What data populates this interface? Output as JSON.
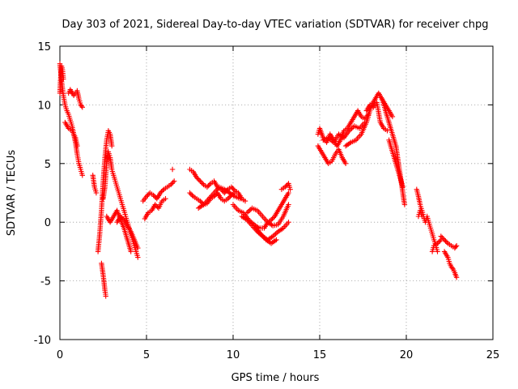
{
  "chart_data": {
    "type": "scatter",
    "title": "Day 303 of 2021, Sidereal Day-to-day VTEC variation (SDTVAR) for receiver chpg",
    "xlabel": "GPS time / hours",
    "ylabel": "SDTVAR / TECUs",
    "xlim": [
      0,
      25
    ],
    "ylim": [
      -10,
      15
    ],
    "xticks": [
      0,
      5,
      10,
      15,
      20,
      25
    ],
    "yticks": [
      -10,
      -5,
      0,
      5,
      10,
      15
    ],
    "xtick_labels": [
      "0",
      "5",
      "10",
      "15",
      "20",
      "25"
    ],
    "ytick_labels": [
      "-10",
      "-5",
      "0",
      "5",
      "10",
      "15"
    ],
    "grid": true,
    "marker": "+",
    "color": "#ff0000",
    "series": [
      {
        "name": "SDTVAR",
        "segments": [
          {
            "x": [
              0.0,
              0.1,
              0.2,
              0.3,
              0.4,
              0.5,
              0.6,
              0.7,
              0.8,
              0.9,
              1.0,
              1.1,
              1.2,
              1.3
            ],
            "y": [
              13.5,
              12.0,
              10.8,
              10.0,
              9.5,
              9.2,
              8.7,
              8.2,
              7.5,
              6.8,
              5.8,
              5.0,
              4.5,
              4.0
            ]
          },
          {
            "x": [
              0.0,
              0.05,
              0.1,
              0.15,
              0.2
            ],
            "y": [
              11.0,
              12.5,
              13.3,
              13.0,
              12.2
            ]
          },
          {
            "x": [
              0.5,
              0.6,
              0.8,
              1.0,
              1.1,
              1.2,
              1.3
            ],
            "y": [
              11.0,
              11.3,
              10.8,
              11.2,
              10.5,
              10.0,
              9.8
            ]
          },
          {
            "x": [
              0.3,
              0.5,
              0.7,
              0.9,
              1.0
            ],
            "y": [
              8.5,
              8.0,
              7.8,
              7.2,
              6.5
            ]
          },
          {
            "x": [
              1.9,
              2.0,
              2.1
            ],
            "y": [
              4.0,
              3.0,
              2.5
            ]
          },
          {
            "x": [
              2.2,
              2.3,
              2.4,
              2.5,
              2.6,
              2.7,
              2.8,
              2.9,
              3.0
            ],
            "y": [
              -2.5,
              -1.0,
              1.0,
              3.5,
              5.5,
              7.0,
              7.8,
              7.5,
              6.5
            ]
          },
          {
            "x": [
              2.4,
              2.5,
              2.6,
              2.65
            ],
            "y": [
              -3.5,
              -4.5,
              -5.8,
              -6.3
            ]
          },
          {
            "x": [
              2.5,
              2.6,
              2.7,
              2.8,
              2.9,
              3.0,
              3.1,
              3.2,
              3.3,
              3.4,
              3.5,
              3.6,
              3.7,
              3.8,
              3.9,
              4.0,
              4.1,
              4.2,
              4.3,
              4.4,
              4.5
            ],
            "y": [
              2.0,
              3.0,
              5.0,
              6.0,
              5.5,
              4.5,
              4.0,
              3.5,
              3.0,
              2.5,
              2.0,
              1.5,
              1.0,
              0.5,
              0.0,
              -0.5,
              -1.0,
              -1.5,
              -2.0,
              -2.5,
              -3.0
            ]
          },
          {
            "x": [
              2.7,
              2.9,
              3.1,
              3.3,
              3.5,
              3.7,
              3.9,
              4.1
            ],
            "y": [
              0.5,
              0.0,
              0.5,
              1.0,
              0.2,
              -0.5,
              -1.5,
              -2.5
            ]
          },
          {
            "x": [
              3.3,
              3.5,
              3.7,
              3.9,
              4.1,
              4.3,
              4.5
            ],
            "y": [
              0.0,
              0.5,
              0.2,
              -0.3,
              -0.8,
              -1.5,
              -2.2
            ]
          },
          {
            "x": [
              4.8,
              5.0,
              5.2,
              5.4,
              5.6,
              5.8,
              6.0,
              6.2,
              6.4,
              6.6
            ],
            "y": [
              1.8,
              2.2,
              2.5,
              2.3,
              2.0,
              2.5,
              2.8,
              3.0,
              3.2,
              3.5
            ]
          },
          {
            "x": [
              4.9,
              5.1,
              5.3,
              5.5,
              5.7,
              5.9,
              6.1
            ],
            "y": [
              0.3,
              0.8,
              1.0,
              1.5,
              1.2,
              1.8,
              2.0
            ]
          },
          {
            "x": [
              6.5
            ],
            "y": [
              4.5
            ]
          },
          {
            "x": [
              7.5,
              7.7,
              7.9,
              8.1,
              8.3,
              8.5,
              8.7,
              8.9,
              9.1,
              9.3,
              9.5,
              9.7,
              9.9,
              10.1,
              10.3,
              10.5,
              10.7
            ],
            "y": [
              4.5,
              4.3,
              3.8,
              3.5,
              3.2,
              3.0,
              3.3,
              3.5,
              3.0,
              2.8,
              2.5,
              2.8,
              3.0,
              2.7,
              2.5,
              2.0,
              1.8
            ]
          },
          {
            "x": [
              7.5,
              7.7,
              7.9,
              8.1,
              8.3,
              8.5,
              8.7,
              8.9,
              9.1,
              9.3,
              9.5,
              9.7,
              9.9,
              10.1
            ],
            "y": [
              2.5,
              2.2,
              2.0,
              1.8,
              1.5,
              1.6,
              2.0,
              2.2,
              2.5,
              2.0,
              1.8,
              2.0,
              2.3,
              2.5
            ]
          },
          {
            "x": [
              8.0,
              8.3,
              8.6,
              8.9,
              9.2,
              9.5,
              9.8,
              10.1,
              10.4
            ],
            "y": [
              1.2,
              1.5,
              2.0,
              2.5,
              3.0,
              2.8,
              2.5,
              2.2,
              2.0
            ]
          },
          {
            "x": [
              10.0,
              10.3,
              10.6,
              10.9,
              11.2,
              11.5,
              11.8,
              12.0,
              12.2,
              12.4,
              12.6,
              12.8,
              13.0,
              13.2
            ],
            "y": [
              1.5,
              1.0,
              0.8,
              0.2,
              -0.2,
              -0.5,
              -0.5,
              0.0,
              0.2,
              0.5,
              1.0,
              1.5,
              2.0,
              2.5
            ]
          },
          {
            "x": [
              10.5,
              10.8,
              11.1,
              11.4,
              11.7,
              12.0,
              12.3,
              12.6,
              12.9,
              13.2
            ],
            "y": [
              0.5,
              0.2,
              -0.3,
              -0.8,
              -1.2,
              -1.5,
              -1.2,
              -0.8,
              -0.5,
              0.0
            ]
          },
          {
            "x": [
              10.8,
              11.1,
              11.4,
              11.7,
              12.0,
              12.3,
              12.6,
              12.9,
              13.2
            ],
            "y": [
              0.8,
              1.2,
              1.0,
              0.5,
              0.0,
              -0.3,
              -0.2,
              0.5,
              1.5
            ]
          },
          {
            "x": [
              11.3,
              11.6,
              11.9,
              12.2,
              12.5
            ],
            "y": [
              -0.5,
              -1.0,
              -1.5,
              -1.8,
              -1.5
            ]
          },
          {
            "x": [
              12.8,
              13.0,
              13.2,
              13.3
            ],
            "y": [
              2.8,
              3.0,
              3.3,
              2.8
            ]
          },
          {
            "x": [
              14.9,
              15.0,
              15.2,
              15.4,
              15.6,
              15.8,
              16.0,
              16.2,
              16.4,
              16.6,
              16.8,
              17.0,
              17.2,
              17.4,
              17.6,
              17.8
            ],
            "y": [
              7.5,
              8.0,
              7.2,
              6.8,
              7.5,
              7.0,
              6.5,
              7.0,
              7.8,
              8.0,
              8.5,
              9.0,
              9.5,
              9.0,
              8.8,
              9.2
            ]
          },
          {
            "x": [
              14.9,
              15.1,
              15.3,
              15.5,
              15.7,
              15.9,
              16.1,
              16.3,
              16.5
            ],
            "y": [
              6.5,
              6.0,
              5.5,
              5.0,
              5.2,
              5.8,
              6.2,
              5.5,
              5.0
            ]
          },
          {
            "x": [
              15.2,
              15.5,
              15.8,
              16.1,
              16.4,
              16.7,
              17.0,
              17.3,
              17.6
            ],
            "y": [
              7.0,
              7.2,
              6.8,
              7.5,
              7.2,
              7.8,
              8.2,
              8.0,
              8.5
            ]
          },
          {
            "x": [
              16.5,
              16.8,
              17.1,
              17.4,
              17.7,
              18.0,
              18.2,
              18.4,
              18.6,
              18.8,
              19.0,
              19.2
            ],
            "y": [
              6.5,
              6.8,
              7.0,
              7.5,
              8.5,
              10.0,
              10.5,
              11.0,
              10.5,
              10.0,
              9.5,
              9.0
            ]
          },
          {
            "x": [
              17.7,
              17.9,
              18.1,
              18.3,
              18.5,
              18.7,
              18.9
            ],
            "y": [
              9.5,
              10.0,
              9.8,
              10.2,
              8.5,
              8.0,
              7.8
            ]
          },
          {
            "x": [
              18.6,
              18.8,
              19.0,
              19.2,
              19.4,
              19.5,
              19.6,
              19.7,
              19.8,
              19.9
            ],
            "y": [
              10.5,
              9.5,
              8.5,
              7.5,
              6.5,
              5.5,
              4.5,
              3.5,
              2.5,
              1.5
            ]
          },
          {
            "x": [
              19.0,
              19.2,
              19.4,
              19.6,
              19.8
            ],
            "y": [
              7.0,
              6.0,
              5.0,
              4.0,
              3.0
            ]
          },
          {
            "x": [
              20.6,
              20.7,
              20.8,
              20.9,
              21.0,
              21.1,
              21.2,
              21.3,
              21.4,
              21.5,
              21.6,
              21.7,
              21.8
            ],
            "y": [
              2.8,
              2.2,
              1.5,
              1.0,
              0.5,
              0.0,
              0.5,
              0.0,
              -0.5,
              -1.0,
              -1.5,
              -2.0,
              -2.5
            ]
          },
          {
            "x": [
              20.7,
              20.8,
              20.9
            ],
            "y": [
              0.5,
              1.0,
              0.5
            ]
          },
          {
            "x": [
              21.5,
              21.6,
              21.8,
              22.0
            ],
            "y": [
              -2.5,
              -2.0,
              -1.8,
              -1.5
            ]
          },
          {
            "x": [
              22.0,
              22.2,
              22.4,
              22.6,
              22.8,
              22.9
            ],
            "y": [
              -1.2,
              -1.5,
              -1.8,
              -2.0,
              -2.2,
              -2.0
            ]
          },
          {
            "x": [
              22.2,
              22.4,
              22.5,
              22.6,
              22.7,
              22.8,
              22.9
            ],
            "y": [
              -2.5,
              -3.0,
              -3.5,
              -3.8,
              -4.0,
              -4.3,
              -4.7
            ]
          }
        ]
      }
    ]
  }
}
